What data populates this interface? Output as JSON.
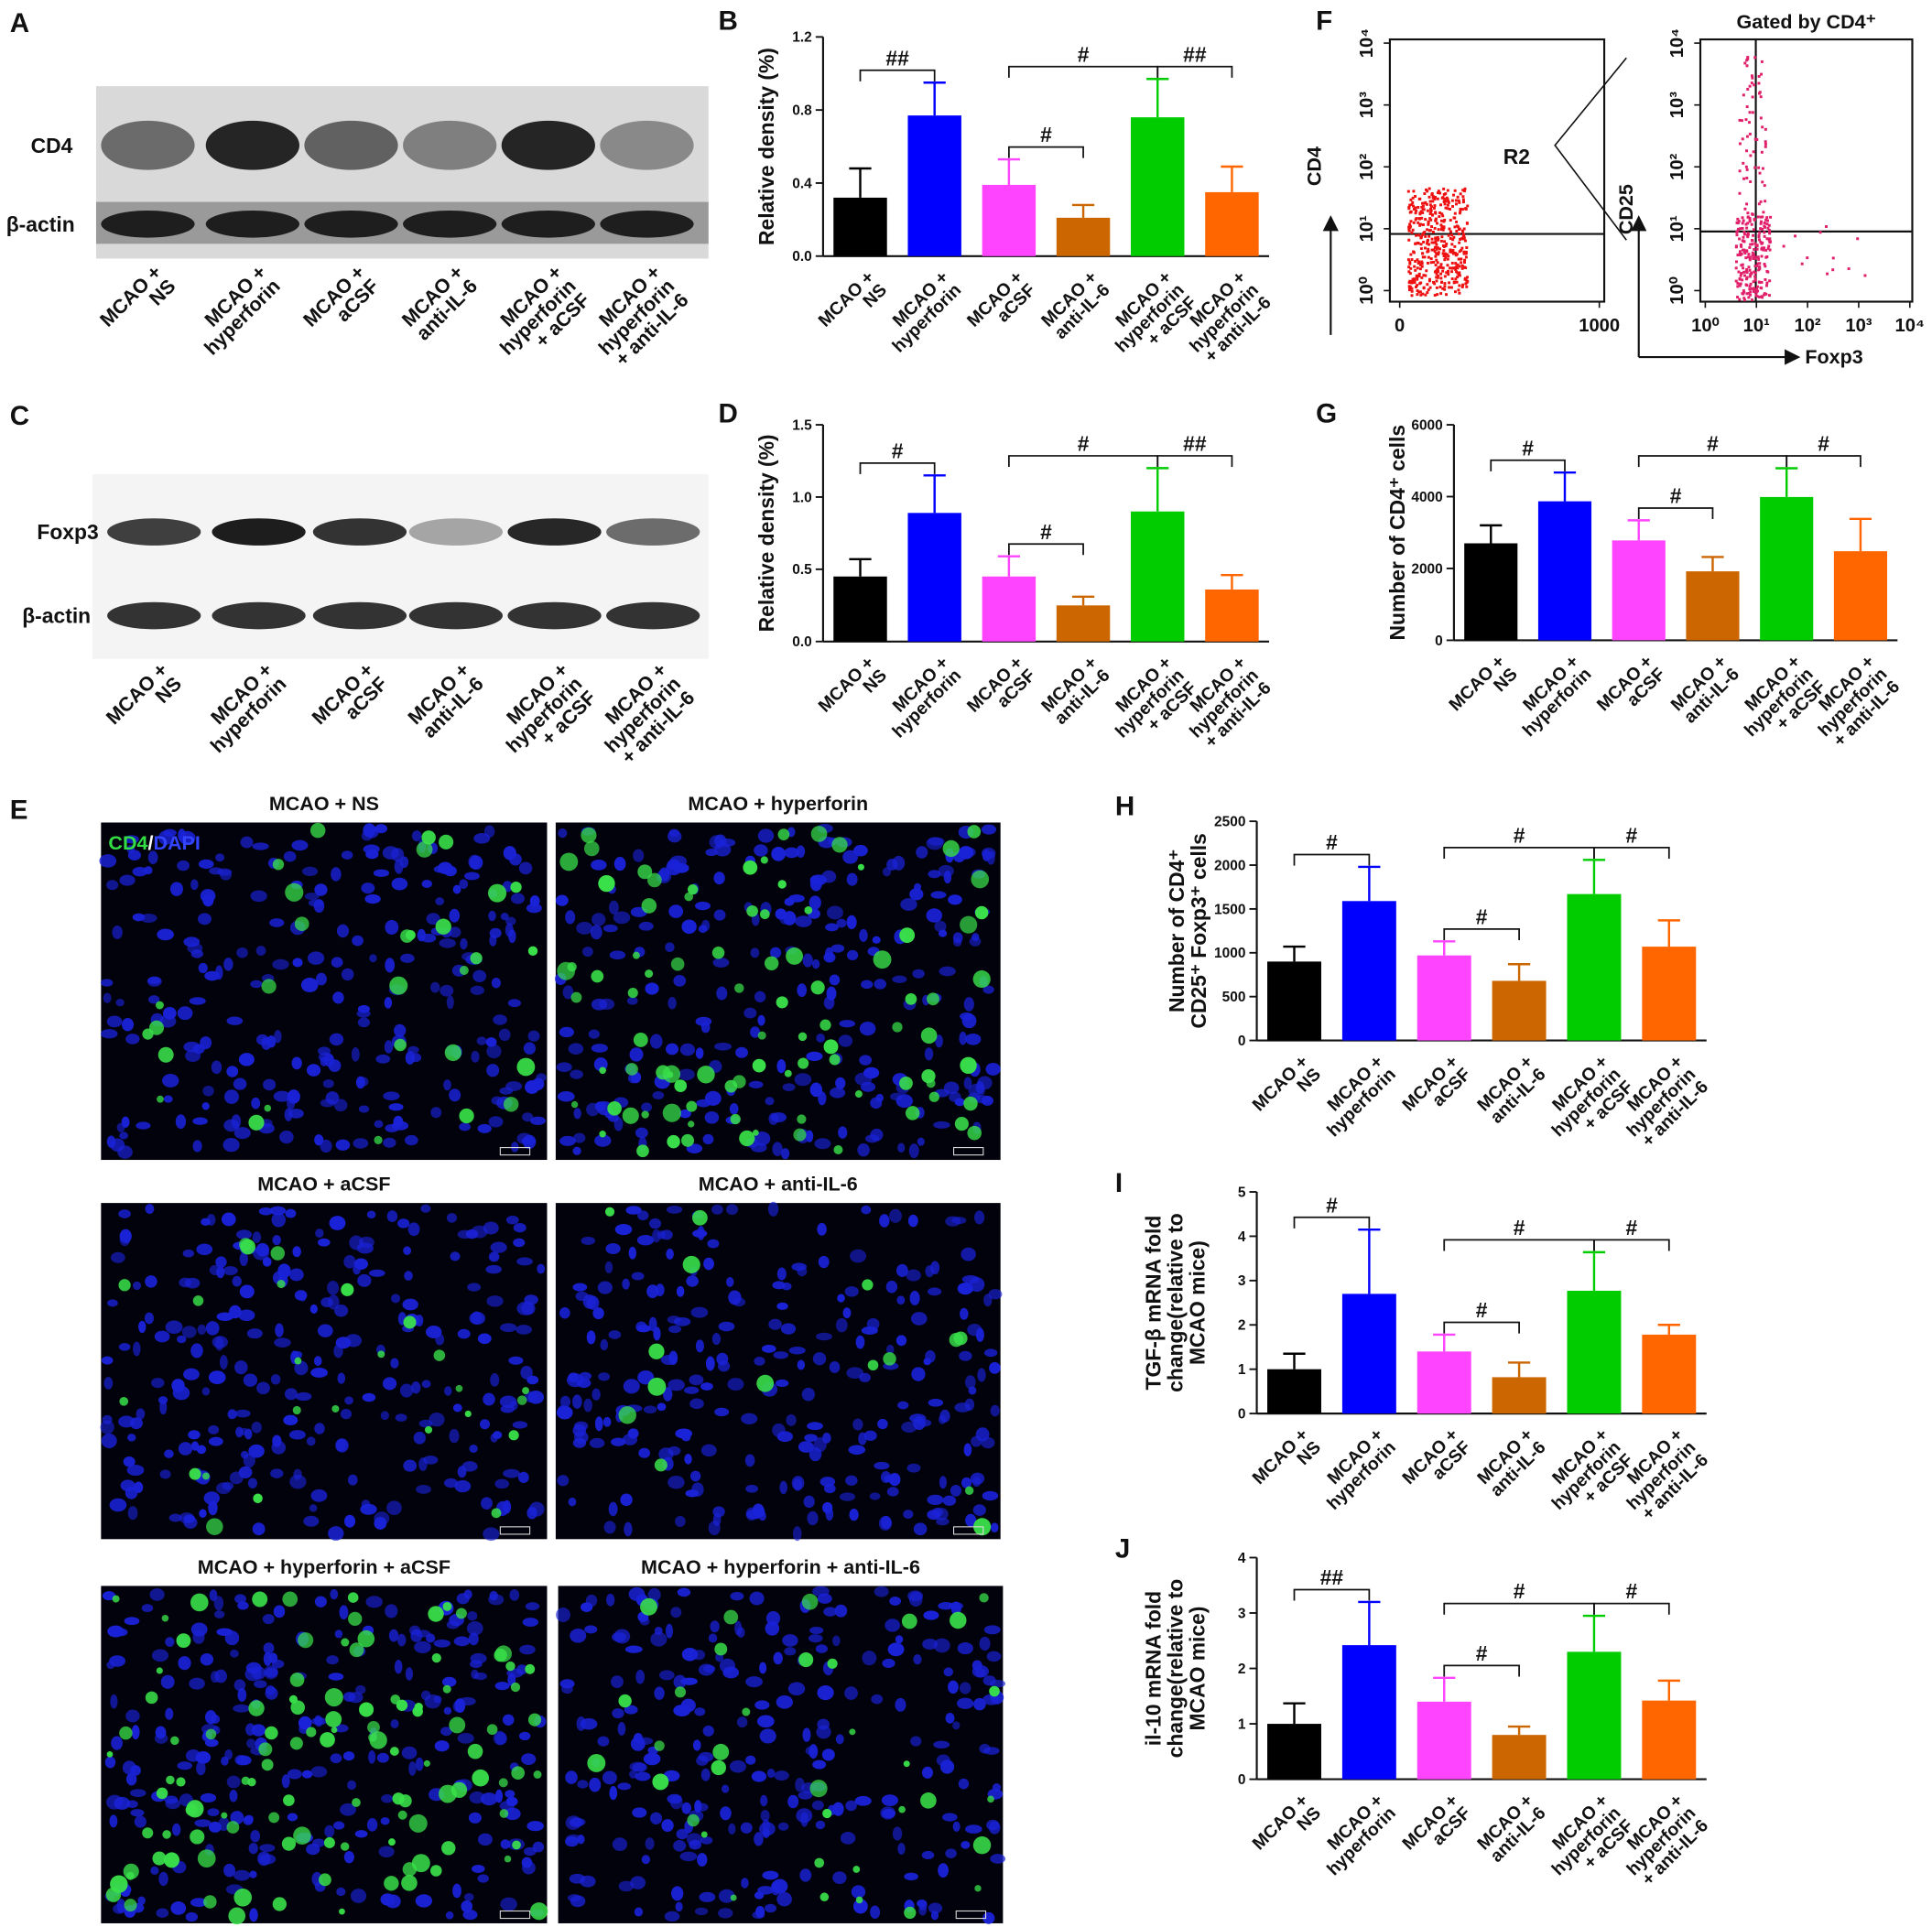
{
  "western_blots": [
    {
      "panel": "A",
      "bands": [
        "CD4",
        "β-actin"
      ],
      "categories": [
        "MCAO +\nNS",
        "MCAO +\nhyperforin",
        "MCAO +\naCSF",
        "MCAO +\nanti-IL-6",
        "MCAO +\nhyperforin\n+ aCSF",
        "MCAO +\nhyperforin\n+ anti-IL-6"
      ]
    },
    {
      "panel": "C",
      "bands": [
        "Foxp3",
        "β-actin"
      ],
      "categories": [
        "MCAO +\nNS",
        "MCAO +\nhyperforin",
        "MCAO +\naCSF",
        "MCAO +\nanti-IL-6",
        "MCAO +\nhyperforin\n+ aCSF",
        "MCAO +\nhyperforin\n+ anti-IL-6"
      ]
    }
  ],
  "immunofluorescence": {
    "panel": "E",
    "stain_green": "CD4",
    "stain_separator": "/",
    "stain_blue": "DAPI",
    "images": [
      "MCAO + NS",
      "MCAO + hyperforin",
      "MCAO + aCSF",
      "MCAO + anti-IL-6",
      "MCAO + hyperforin + aCSF",
      "MCAO + hyperforin + anti-IL-6"
    ]
  },
  "flow_cytometry": {
    "panel": "F",
    "plots": [
      {
        "ylabel": "CD4",
        "gate_label": "R2",
        "xticks": [
          0,
          1000
        ],
        "yticks": [
          {
            "value": 1,
            "label": "10⁰"
          },
          {
            "value": 10,
            "label": "10¹"
          },
          {
            "value": 100,
            "label": "10²"
          },
          {
            "value": 1000,
            "label": "10³"
          },
          {
            "value": 10000,
            "label": "10⁴"
          }
        ]
      },
      {
        "title": "Gated by CD4⁺",
        "ylabel": "CD25",
        "xlabel": "Foxp3",
        "xticks": [
          {
            "value": 1,
            "label": "10⁰"
          },
          {
            "value": 10,
            "label": "10¹"
          },
          {
            "value": 100,
            "label": "10²"
          },
          {
            "value": 1000,
            "label": "10³"
          },
          {
            "value": 10000,
            "label": "10⁴"
          }
        ],
        "yticks": [
          {
            "value": 1,
            "label": "10⁰"
          },
          {
            "value": 10,
            "label": "10¹"
          },
          {
            "value": 100,
            "label": "10²"
          },
          {
            "value": 1000,
            "label": "10³"
          },
          {
            "value": 10000,
            "label": "10⁴"
          }
        ]
      }
    ]
  },
  "chart_data": [
    {
      "type": "bar",
      "panel": "B",
      "ylabel": "Relative density (%)",
      "categories": [
        "MCAO +\nNS",
        "MCAO +\nhyperforin",
        "MCAO +\naCSF",
        "MCAO +\nanti-IL-6",
        "MCAO +\nhyperforin\n+ aCSF",
        "MCAO +\nhyperforin\n+ anti-IL-6"
      ],
      "values": [
        0.32,
        0.77,
        0.39,
        0.21,
        0.76,
        0.35
      ],
      "errors": [
        0.16,
        0.18,
        0.14,
        0.07,
        0.21,
        0.14
      ],
      "colors": [
        "#000000",
        "#0000ff",
        "#ff44ff",
        "#cc6600",
        "#00cc00",
        "#ff6600"
      ],
      "ylim": [
        0,
        1.2
      ],
      "yticks": [
        {
          "value": 0,
          "label": "0.0"
        },
        0.4,
        0.8,
        1.2
      ],
      "comparisons": [
        {
          "groups": [
            0,
            1
          ],
          "label": "##"
        },
        {
          "groups": [
            2,
            3
          ],
          "label": "#"
        },
        {
          "groups": [
            2,
            4
          ],
          "label": "#"
        },
        {
          "groups": [
            4,
            5
          ],
          "label": "##"
        }
      ]
    },
    {
      "type": "bar",
      "panel": "D",
      "ylabel": "Relative density (%)",
      "categories": [
        "MCAO +\nNS",
        "MCAO +\nhyperforin",
        "MCAO +\naCSF",
        "MCAO +\nanti-IL-6",
        "MCAO +\nhyperforin\n+ aCSF",
        "MCAO +\nhyperforin\n+ anti-IL-6"
      ],
      "values": [
        0.45,
        0.89,
        0.45,
        0.25,
        0.9,
        0.36
      ],
      "errors": [
        0.12,
        0.26,
        0.14,
        0.06,
        0.3,
        0.1
      ],
      "colors": [
        "#000000",
        "#0000ff",
        "#ff44ff",
        "#cc6600",
        "#00cc00",
        "#ff6600"
      ],
      "ylim": [
        0,
        1.5
      ],
      "yticks": [
        {
          "value": 0,
          "label": "0.0"
        },
        0.5,
        {
          "value": 1,
          "label": "1.0"
        },
        1.5
      ],
      "comparisons": [
        {
          "groups": [
            0,
            1
          ],
          "label": "#"
        },
        {
          "groups": [
            2,
            3
          ],
          "label": "#"
        },
        {
          "groups": [
            2,
            4
          ],
          "label": "#"
        },
        {
          "groups": [
            4,
            5
          ],
          "label": "##"
        }
      ]
    },
    {
      "type": "bar",
      "panel": "G",
      "ylabel": "Number of CD4⁺ cells",
      "categories": [
        "MCAO +\nNS",
        "MCAO +\nhyperforin",
        "MCAO +\naCSF",
        "MCAO +\nanti-IL-6",
        "MCAO +\nhyperforin\n+ aCSF",
        "MCAO +\nhyperforin\n+ anti-IL-6"
      ],
      "values": [
        2700,
        3870,
        2780,
        1920,
        3990,
        2480
      ],
      "errors": [
        500,
        800,
        560,
        400,
        800,
        900
      ],
      "colors": [
        "#000000",
        "#0000ff",
        "#ff44ff",
        "#cc6600",
        "#00cc00",
        "#ff6600"
      ],
      "ylim": [
        0,
        6000
      ],
      "yticks": [
        0,
        2000,
        4000,
        6000
      ],
      "comparisons": [
        {
          "groups": [
            0,
            1
          ],
          "label": "#"
        },
        {
          "groups": [
            2,
            3
          ],
          "label": "#"
        },
        {
          "groups": [
            2,
            4
          ],
          "label": "#"
        },
        {
          "groups": [
            4,
            5
          ],
          "label": "#"
        }
      ]
    },
    {
      "type": "bar",
      "panel": "H",
      "ylabel": "Number of CD4⁺\nCD25⁺ Foxp3⁺ cells",
      "categories": [
        "MCAO +\nNS",
        "MCAO +\nhyperforin",
        "MCAO +\naCSF",
        "MCAO +\nanti-IL-6",
        "MCAO +\nhyperforin\n+ aCSF",
        "MCAO +\nhyperforin\n+ anti-IL-6"
      ],
      "values": [
        900,
        1590,
        970,
        680,
        1670,
        1070
      ],
      "errors": [
        170,
        390,
        160,
        190,
        390,
        300
      ],
      "colors": [
        "#000000",
        "#0000ff",
        "#ff44ff",
        "#cc6600",
        "#00cc00",
        "#ff6600"
      ],
      "ylim": [
        0,
        2500
      ],
      "yticks": [
        0,
        500,
        1000,
        1500,
        2000,
        2500
      ],
      "comparisons": [
        {
          "groups": [
            0,
            1
          ],
          "label": "#"
        },
        {
          "groups": [
            2,
            3
          ],
          "label": "#"
        },
        {
          "groups": [
            2,
            4
          ],
          "label": "#"
        },
        {
          "groups": [
            4,
            5
          ],
          "label": "#"
        }
      ]
    },
    {
      "type": "bar",
      "panel": "I",
      "ylabel": "TGF-β  mRNA fold\nchange(relative to\nMCAO mice)",
      "categories": [
        "MCAO +\nNS",
        "MCAO +\nhyperforin",
        "MCAO +\naCSF",
        "MCAO +\nanti-IL-6",
        "MCAO +\nhyperforin\n+ aCSF",
        "MCAO +\nhyperforin\n+ anti-IL-6"
      ],
      "values": [
        1.0,
        2.7,
        1.4,
        0.82,
        2.77,
        1.78
      ],
      "errors": [
        0.35,
        1.45,
        0.38,
        0.33,
        0.87,
        0.22
      ],
      "colors": [
        "#000000",
        "#0000ff",
        "#ff44ff",
        "#cc6600",
        "#00cc00",
        "#ff6600"
      ],
      "ylim": [
        0,
        5
      ],
      "yticks": [
        0,
        1,
        2,
        3,
        4,
        5
      ],
      "comparisons": [
        {
          "groups": [
            0,
            1
          ],
          "label": "#"
        },
        {
          "groups": [
            2,
            3
          ],
          "label": "#"
        },
        {
          "groups": [
            2,
            4
          ],
          "label": "#"
        },
        {
          "groups": [
            4,
            5
          ],
          "label": "#"
        }
      ]
    },
    {
      "type": "bar",
      "panel": "J",
      "ylabel": "il-10 mRNA fold\nchange(relative to\nMCAO mice)",
      "categories": [
        "MCAO +\nNS",
        "MCAO +\nhyperforin",
        "MCAO +\naCSF",
        "MCAO +\nanti-IL-6",
        "MCAO +\nhyperforin\n+ aCSF",
        "MCAO +\nhyperforin\n+ anti-IL-6"
      ],
      "values": [
        1.0,
        2.42,
        1.4,
        0.8,
        2.3,
        1.42
      ],
      "errors": [
        0.37,
        0.78,
        0.43,
        0.15,
        0.65,
        0.36
      ],
      "colors": [
        "#000000",
        "#0000ff",
        "#ff44ff",
        "#cc6600",
        "#00cc00",
        "#ff6600"
      ],
      "ylim": [
        0,
        4
      ],
      "yticks": [
        0,
        1,
        2,
        3,
        4
      ],
      "comparisons": [
        {
          "groups": [
            0,
            1
          ],
          "label": "##"
        },
        {
          "groups": [
            2,
            3
          ],
          "label": "#"
        },
        {
          "groups": [
            2,
            4
          ],
          "label": "#"
        },
        {
          "groups": [
            4,
            5
          ],
          "label": "#"
        }
      ]
    }
  ]
}
